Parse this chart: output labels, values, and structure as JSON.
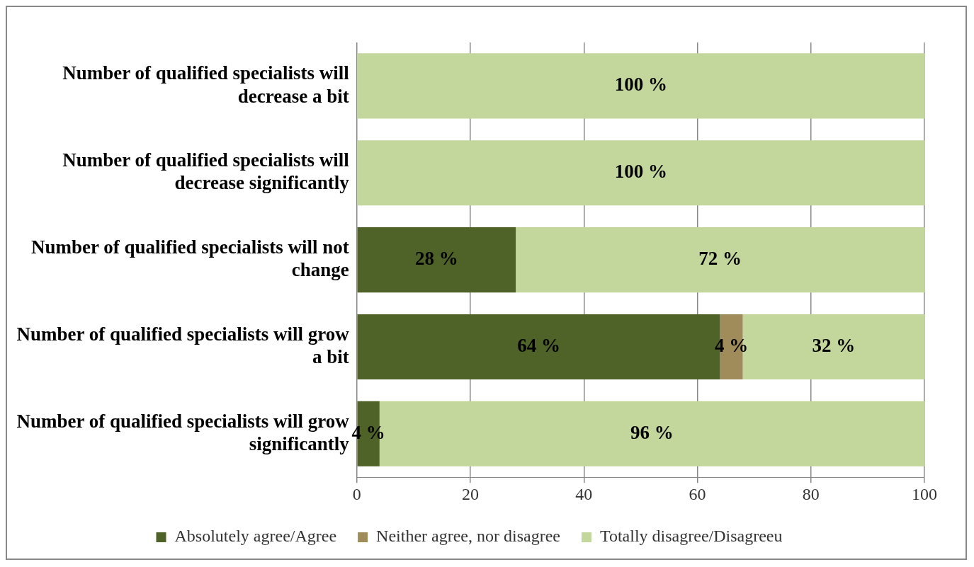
{
  "chart_data": {
    "type": "bar",
    "orientation": "horizontal",
    "stacked": true,
    "categories": [
      "Number of qualified specialists will decrease a bit",
      "Number of qualified specialists will decrease significantly",
      "Number of qualified specialists will not change",
      "Number of qualified specialists will grow a bit",
      "Number of qualified specialists will grow significantly"
    ],
    "series": [
      {
        "name": "Absolutely agree/Agree",
        "color": "#4f6228",
        "values": [
          null,
          null,
          28,
          64,
          4
        ],
        "value_labels": [
          null,
          null,
          "28 %",
          "64 %",
          "4 %"
        ]
      },
      {
        "name": "Neither agree, nor disagree",
        "color": "#a08c5a",
        "values": [
          null,
          null,
          null,
          4,
          null
        ],
        "value_labels": [
          null,
          null,
          null,
          "4 %",
          null
        ]
      },
      {
        "name": "Totally disagree/Disagreeu",
        "color": "#c3d69b",
        "values": [
          100,
          100,
          72,
          32,
          96
        ],
        "value_labels": [
          "100 %",
          "100 %",
          "72 %",
          "32 %",
          "96 %"
        ]
      }
    ],
    "xlim": [
      0,
      100
    ],
    "xticks": [
      0,
      20,
      40,
      60,
      80,
      100
    ],
    "grid": "x",
    "legend": "bottom"
  }
}
